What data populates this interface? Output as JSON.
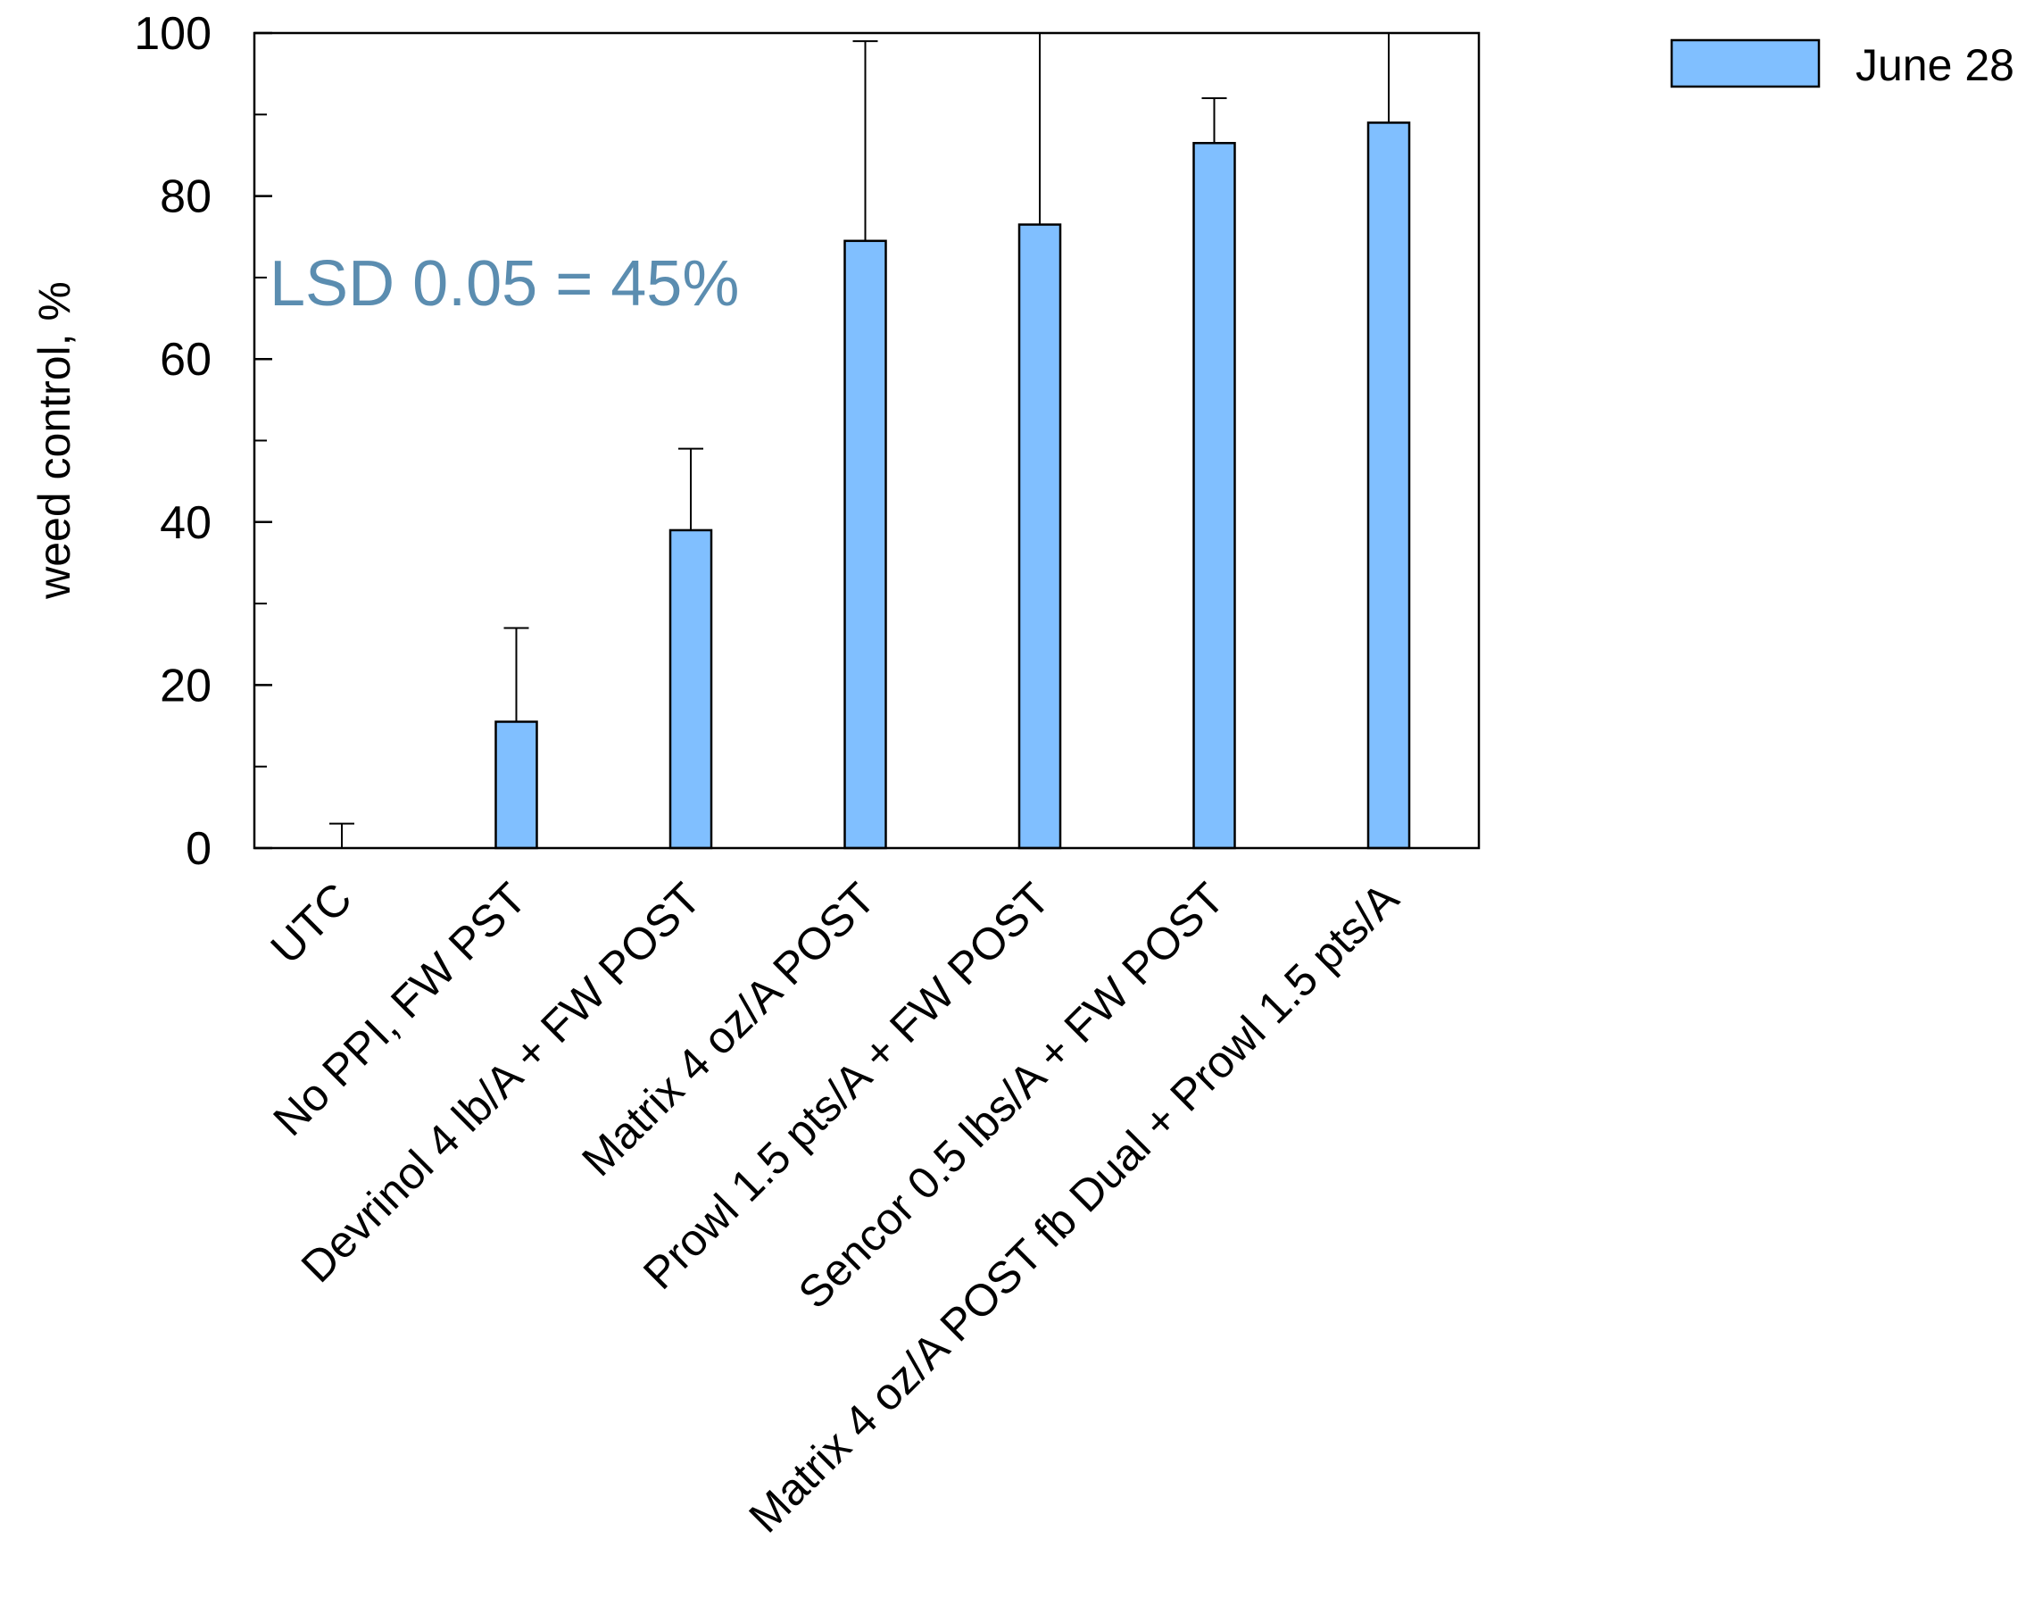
{
  "chart_data": {
    "type": "bar",
    "categories": [
      "UTC",
      "No PPI, FW PST",
      "Devrinol 4 lb/A + FW POST",
      "Matrix 4 oz/A POST",
      "Prowl 1.5 pts/A + FW POST",
      "Sencor 0.5 lbs/A + FW POST",
      "Matrix 4 oz/A POST fb Dual + Prowl 1.5 pts/A"
    ],
    "series": [
      {
        "name": "June 28",
        "values": [
          0,
          15.5,
          39,
          74.5,
          76.5,
          86.5,
          89
        ],
        "error_upper": [
          3,
          27,
          49,
          99,
          100,
          92,
          100
        ]
      }
    ],
    "ylabel": "weed control, %",
    "xlabel": "",
    "ylim": [
      0,
      100
    ],
    "yticks": [
      0,
      20,
      40,
      60,
      80,
      100
    ],
    "yminor_step": 10,
    "annotation": "LSD 0.05 = 45%",
    "legend_position": "top-right",
    "bar_color": "#80BFFF",
    "annotation_color": "#5B8DB0"
  }
}
